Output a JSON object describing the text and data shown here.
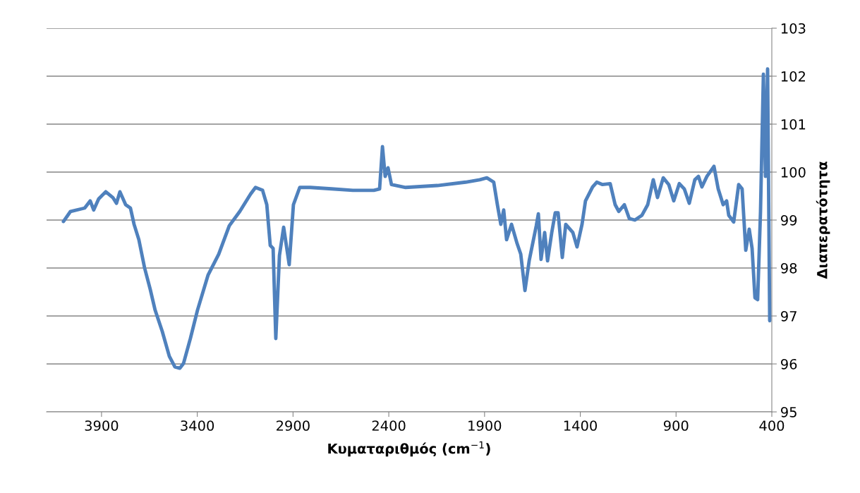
{
  "chart_data": {
    "type": "line",
    "xlabel": "Κυματαριθμός (cm$^{−1}$)",
    "ylabel": "Διαπερατότητα",
    "xlim": [
      4187,
      400
    ],
    "xticks": [
      3900,
      3400,
      2900,
      2400,
      1900,
      1400,
      900,
      400
    ],
    "ylim": [
      95,
      103
    ],
    "yticks": [
      95,
      96,
      97,
      98,
      99,
      100,
      101,
      102,
      103
    ],
    "grid": "y",
    "legend": false,
    "marker": "none",
    "line_style": "solid",
    "series": [
      {
        "color": "#4f81bd",
        "x": [
          4099,
          4062,
          3988,
          3959,
          3941,
          3915,
          3878,
          3841,
          3822,
          3804,
          3774,
          3749,
          3730,
          3705,
          3675,
          3646,
          3620,
          3583,
          3546,
          3517,
          3491,
          3472,
          3436,
          3399,
          3344,
          3288,
          3233,
          3178,
          3122,
          3096,
          3059,
          3037,
          3019,
          3004,
          2990,
          2971,
          2949,
          2920,
          2898,
          2865,
          2810,
          2699,
          2588,
          2478,
          2448,
          2433,
          2419,
          2404,
          2386,
          2312,
          2146,
          1999,
          1925,
          1888,
          1852,
          1833,
          1815,
          1800,
          1785,
          1759,
          1730,
          1711,
          1689,
          1667,
          1630,
          1619,
          1605,
          1586,
          1571,
          1549,
          1531,
          1516,
          1494,
          1476,
          1439,
          1417,
          1391,
          1373,
          1336,
          1314,
          1284,
          1244,
          1218,
          1199,
          1170,
          1144,
          1115,
          1078,
          1048,
          1019,
          997,
          967,
          938,
          912,
          883,
          857,
          831,
          802,
          783,
          765,
          739,
          702,
          680,
          654,
          636,
          625,
          599,
          573,
          555,
          536,
          518,
          503,
          488,
          474,
          459,
          444,
          433,
          422,
          411
        ],
        "values": [
          98.97,
          99.18,
          99.25,
          99.4,
          99.21,
          99.44,
          99.59,
          99.47,
          99.35,
          99.59,
          99.32,
          99.25,
          98.91,
          98.59,
          98.0,
          97.56,
          97.12,
          96.68,
          96.16,
          95.94,
          95.91,
          96.01,
          96.53,
          97.12,
          97.85,
          98.29,
          98.88,
          99.18,
          99.54,
          99.68,
          99.62,
          99.32,
          98.47,
          98.41,
          96.53,
          98.26,
          98.85,
          98.07,
          99.32,
          99.68,
          99.68,
          99.65,
          99.62,
          99.62,
          99.65,
          100.53,
          99.91,
          100.09,
          99.74,
          99.68,
          99.72,
          99.79,
          99.84,
          99.88,
          99.79,
          99.32,
          98.91,
          99.21,
          98.59,
          98.91,
          98.51,
          98.29,
          97.53,
          98.15,
          98.88,
          99.13,
          98.18,
          98.74,
          98.15,
          98.74,
          99.15,
          99.15,
          98.22,
          98.91,
          98.74,
          98.44,
          98.91,
          99.4,
          99.69,
          99.79,
          99.74,
          99.76,
          99.32,
          99.18,
          99.32,
          99.03,
          99.0,
          99.1,
          99.32,
          99.84,
          99.47,
          99.88,
          99.74,
          99.4,
          99.76,
          99.65,
          99.35,
          99.84,
          99.91,
          99.69,
          99.91,
          100.12,
          99.65,
          99.32,
          99.4,
          99.1,
          98.96,
          99.74,
          99.65,
          98.37,
          98.81,
          98.41,
          97.38,
          97.34,
          99.18,
          102.04,
          99.91,
          102.15,
          96.9
        ]
      }
    ]
  }
}
